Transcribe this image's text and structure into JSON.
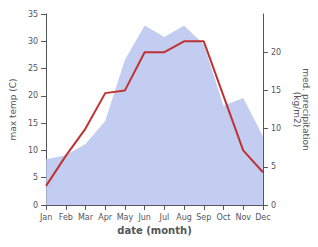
{
  "chart_data": {
    "type": "line",
    "categories": [
      "Jan",
      "Feb",
      "Mar",
      "Apr",
      "May",
      "Jun",
      "Jul",
      "Aug",
      "Sep",
      "Oct",
      "Nov",
      "Dec"
    ],
    "series": [
      {
        "type": "area",
        "color": "#b8c4ee",
        "axis": "y2",
        "values": [
          6.0,
          6.5,
          8.0,
          11.0,
          19.0,
          23.5,
          22.0,
          23.5,
          21.0,
          13.0,
          14.0,
          9.0
        ]
      },
      {
        "type": "line",
        "color": "#c03232",
        "values": [
          3.5,
          9.0,
          14.0,
          20.5,
          21.0,
          28.0,
          28.0,
          30.0,
          30.0,
          20.0,
          10.0,
          6.0
        ]
      }
    ],
    "xlabel": "date (month)",
    "ylabel": "max temp (C)",
    "y2label": "med. precipitation\n(kg/m2)",
    "ylim": [
      0,
      35
    ],
    "yticks": [
      0,
      5,
      10,
      15,
      20,
      25,
      30,
      35
    ],
    "y2lim": [
      0,
      25
    ],
    "y2ticks": [
      0,
      5,
      10,
      15,
      20
    ],
    "grid": false
  }
}
